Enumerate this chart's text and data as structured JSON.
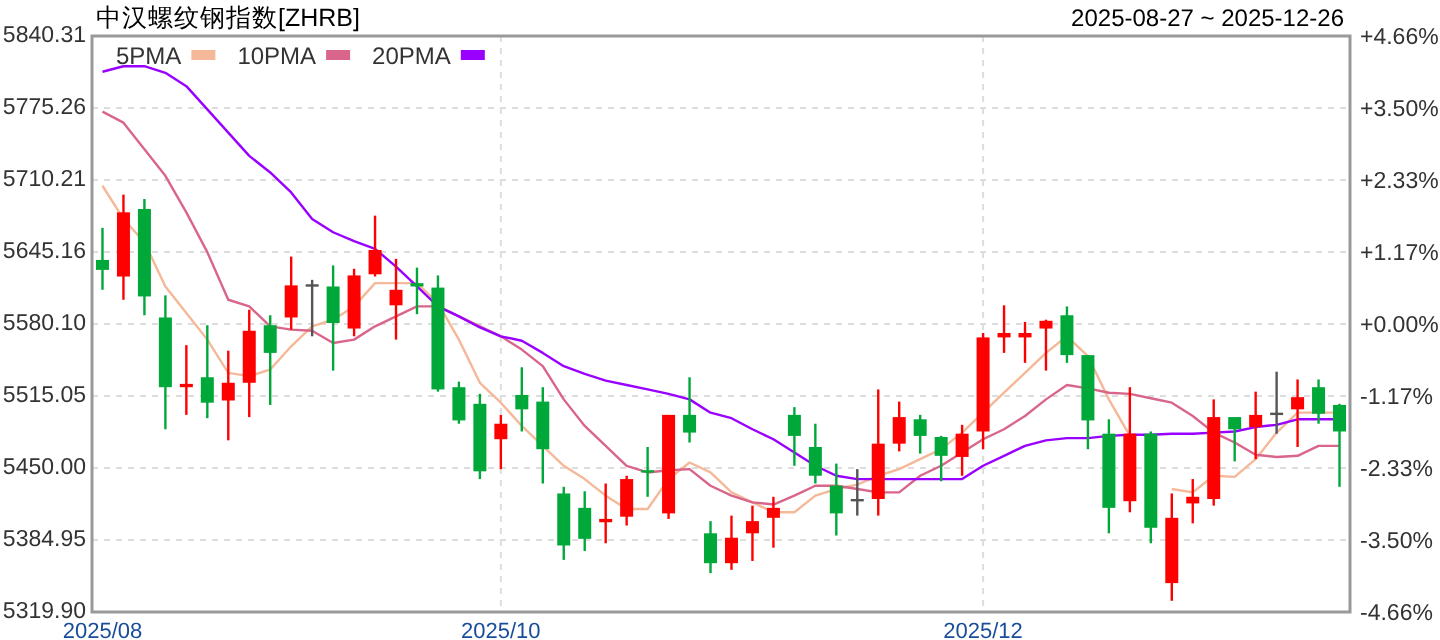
{
  "chart_data": {
    "type": "candlestick",
    "title": "中汉螺纹钢指数[ZHRB]",
    "subtitle": "2025-08-27 ~ 2025-12-26",
    "categories": [
      "2025/08",
      null,
      null,
      null,
      null,
      null,
      null,
      null,
      null,
      null,
      null,
      null,
      null,
      null,
      null,
      null,
      null,
      null,
      null,
      "2025/10",
      null,
      null,
      null,
      null,
      null,
      null,
      null,
      null,
      null,
      null,
      null,
      null,
      null,
      null,
      null,
      null,
      null,
      null,
      null,
      null,
      null,
      null,
      "2025/12",
      null,
      null,
      null,
      null,
      null,
      null,
      null,
      null,
      null,
      null,
      null,
      null,
      null,
      null,
      null,
      null,
      null
    ],
    "ohlc": [
      [
        5638,
        5667,
        5611,
        5629
      ],
      [
        5623,
        5697,
        5602,
        5681
      ],
      [
        5684,
        5693,
        5588,
        5605
      ],
      [
        5586,
        5606,
        5485,
        5523
      ],
      [
        5523,
        5561,
        5498,
        5526
      ],
      [
        5532,
        5579,
        5495,
        5509
      ],
      [
        5511,
        5556,
        5475,
        5527
      ],
      [
        5527,
        5593,
        5496,
        5574
      ],
      [
        5579,
        5588,
        5507,
        5554
      ],
      [
        5586,
        5641,
        5575,
        5615
      ],
      [
        5616,
        5620,
        5569,
        5616
      ],
      [
        5614,
        5633,
        5538,
        5581
      ],
      [
        5576,
        5630,
        5569,
        5624
      ],
      [
        5625,
        5678,
        5623,
        5647
      ],
      [
        5597,
        5639,
        5566,
        5611
      ],
      [
        5617,
        5631,
        5589,
        5614
      ],
      [
        5613,
        5624,
        5519,
        5521
      ],
      [
        5523,
        5528,
        5490,
        5493
      ],
      [
        5508,
        5517,
        5440,
        5447
      ],
      [
        5476,
        5498,
        5449,
        5490
      ],
      [
        5516,
        5541,
        5483,
        5503
      ],
      [
        5510,
        5523,
        5436,
        5467
      ],
      [
        5427,
        5433,
        5367,
        5380
      ],
      [
        5414,
        5429,
        5375,
        5386
      ],
      [
        5401,
        5436,
        5382,
        5404
      ],
      [
        5406,
        5443,
        5398,
        5440
      ],
      [
        5448,
        5469,
        5424,
        5446
      ],
      [
        5409,
        5498,
        5404,
        5498
      ],
      [
        5498,
        5532,
        5473,
        5482
      ],
      [
        5391,
        5402,
        5355,
        5364
      ],
      [
        5364,
        5407,
        5358,
        5387
      ],
      [
        5391,
        5416,
        5366,
        5402
      ],
      [
        5405,
        5424,
        5378,
        5414
      ],
      [
        5498,
        5505,
        5452,
        5479
      ],
      [
        5469,
        5490,
        5436,
        5443
      ],
      [
        5434,
        5454,
        5389,
        5409
      ],
      [
        5422,
        5449,
        5407,
        5422
      ],
      [
        5422,
        5521,
        5407,
        5472
      ],
      [
        5472,
        5510,
        5465,
        5496
      ],
      [
        5494,
        5498,
        5463,
        5479
      ],
      [
        5478,
        5479,
        5438,
        5461
      ],
      [
        5460,
        5489,
        5443,
        5481
      ],
      [
        5483,
        5572,
        5467,
        5568
      ],
      [
        5568,
        5597,
        5554,
        5572
      ],
      [
        5568,
        5582,
        5545,
        5572
      ],
      [
        5576,
        5584,
        5538,
        5583
      ],
      [
        5588,
        5596,
        5545,
        5552
      ],
      [
        5552,
        5552,
        5467,
        5493
      ],
      [
        5481,
        5494,
        5391,
        5414
      ],
      [
        5420,
        5523,
        5410,
        5481
      ],
      [
        5481,
        5483,
        5382,
        5396
      ],
      [
        5346,
        5427,
        5330,
        5405
      ],
      [
        5418,
        5440,
        5400,
        5424
      ],
      [
        5422,
        5512,
        5416,
        5496
      ],
      [
        5496,
        5496,
        5456,
        5485
      ],
      [
        5487,
        5519,
        5458,
        5498
      ],
      [
        5500,
        5537,
        5481,
        5500
      ],
      [
        5503,
        5530,
        5469,
        5514
      ],
      [
        5523,
        5530,
        5490,
        5499
      ],
      [
        5507,
        5508,
        5433,
        5483
      ]
    ],
    "colors": [
      "#00a83a",
      "#ff0000",
      "#00a83a",
      "#00a83a",
      "#ff0000",
      "#00a83a",
      "#ff0000",
      "#ff0000",
      "#00a83a",
      "#ff0000",
      "#555555",
      "#00a83a",
      "#ff0000",
      "#ff0000",
      "#ff0000",
      "#00a83a",
      "#00a83a",
      "#00a83a",
      "#00a83a",
      "#ff0000",
      "#00a83a",
      "#00a83a",
      "#00a83a",
      "#00a83a",
      "#ff0000",
      "#ff0000",
      "#00a83a",
      "#ff0000",
      "#00a83a",
      "#00a83a",
      "#ff0000",
      "#ff0000",
      "#ff0000",
      "#00a83a",
      "#00a83a",
      "#00a83a",
      "#555555",
      "#ff0000",
      "#ff0000",
      "#00a83a",
      "#00a83a",
      "#ff0000",
      "#ff0000",
      "#ff0000",
      "#ff0000",
      "#ff0000",
      "#00a83a",
      "#00a83a",
      "#00a83a",
      "#ff0000",
      "#00a83a",
      "#ff0000",
      "#ff0000",
      "#ff0000",
      "#00a83a",
      "#ff0000",
      "#555555",
      "#ff0000",
      "#00a83a",
      "#00a83a"
    ],
    "series": [
      {
        "name": "5PMA",
        "type": "line",
        "color": "#f5b899",
        "values": [
          5705,
          5675,
          5654,
          5614,
          5590,
          5566,
          5536,
          5533,
          5539,
          5560,
          5578,
          5584,
          5596,
          5617,
          5617,
          5617,
          5599,
          5566,
          5527,
          5509,
          5488,
          5470,
          5452,
          5440,
          5425,
          5413,
          5413,
          5440,
          5455,
          5446,
          5428,
          5419,
          5410,
          5410,
          5425,
          5431,
          5435,
          5443,
          5449,
          5458,
          5467,
          5482,
          5500,
          5518,
          5536,
          5554,
          5569,
          5551,
          5512,
          5479,
          null,
          5431,
          5428,
          5443,
          5442,
          5458,
          5482,
          5500,
          5500,
          5500
        ]
      },
      {
        "name": "10PMA",
        "type": "line",
        "color": "#d9668a",
        "values": [
          5772,
          5762,
          5738,
          5714,
          5681,
          5645,
          5602,
          5596,
          5578,
          5575,
          5574,
          5563,
          5566,
          5578,
          5587,
          5596,
          5596,
          5587,
          5578,
          5569,
          5557,
          5542,
          5512,
          5488,
          5470,
          5452,
          5446,
          5448,
          5449,
          5434,
          5425,
          5419,
          5417,
          5425,
          5434,
          5434,
          5431,
          5428,
          5428,
          5443,
          5452,
          5464,
          5476,
          5485,
          5497,
          5512,
          5525,
          5522,
          5518,
          5517,
          5513,
          5509,
          5497,
          5482,
          5473,
          5462,
          5460,
          5461,
          5470,
          5470
        ]
      },
      {
        "name": "20PMA",
        "type": "line",
        "color": "#9900ff",
        "values": [
          5808,
          5813,
          5813,
          5807,
          5795,
          5774,
          5753,
          5732,
          5717,
          5699,
          5675,
          5663,
          5655,
          5648,
          5632,
          5614,
          5596,
          5587,
          5577,
          5569,
          5565,
          5554,
          5542,
          5535,
          5529,
          5525,
          5521,
          5517,
          5512,
          5500,
          5495,
          5485,
          5476,
          5464,
          5452,
          5443,
          5440,
          5440,
          5440,
          5440,
          5440,
          5440,
          5452,
          5461,
          5470,
          5475,
          5477,
          5477,
          5479,
          5480,
          5480,
          5481,
          5481,
          5482,
          5483,
          5487,
          5489,
          5494,
          5494,
          5494
        ]
      }
    ],
    "ylim": [
      5319.9,
      5840.31
    ],
    "yticks": [
      {
        "value": 5319.9,
        "label": "5319.90"
      },
      {
        "value": 5384.95,
        "label": "5384.95"
      },
      {
        "value": 5450,
        "label": "5450.00"
      },
      {
        "value": 5515.05,
        "label": "5515.05"
      },
      {
        "value": 5580.1,
        "label": "5580.10"
      },
      {
        "value": 5645.16,
        "label": "5645.16"
      },
      {
        "value": 5710.21,
        "label": "5710.21"
      },
      {
        "value": 5775.26,
        "label": "5775.26"
      },
      {
        "value": 5840.31,
        "label": "5840.31"
      }
    ],
    "y2lim": [
      -4.66,
      4.66
    ],
    "y2ticks": [
      {
        "value": -4.66,
        "label": "-4.66%"
      },
      {
        "value": -3.5,
        "label": "-3.50%"
      },
      {
        "value": -2.33,
        "label": "-2.33%"
      },
      {
        "value": -1.17,
        "label": "-1.17%"
      },
      {
        "value": 0,
        "label": "+0.00%"
      },
      {
        "value": 1.17,
        "label": "+1.17%"
      },
      {
        "value": 2.33,
        "label": "+2.33%"
      },
      {
        "value": 3.5,
        "label": "+3.50%"
      },
      {
        "value": 4.66,
        "label": "+4.66%"
      }
    ],
    "grid": true,
    "legend": "top left",
    "marker": "none",
    "line_style": "solid"
  }
}
